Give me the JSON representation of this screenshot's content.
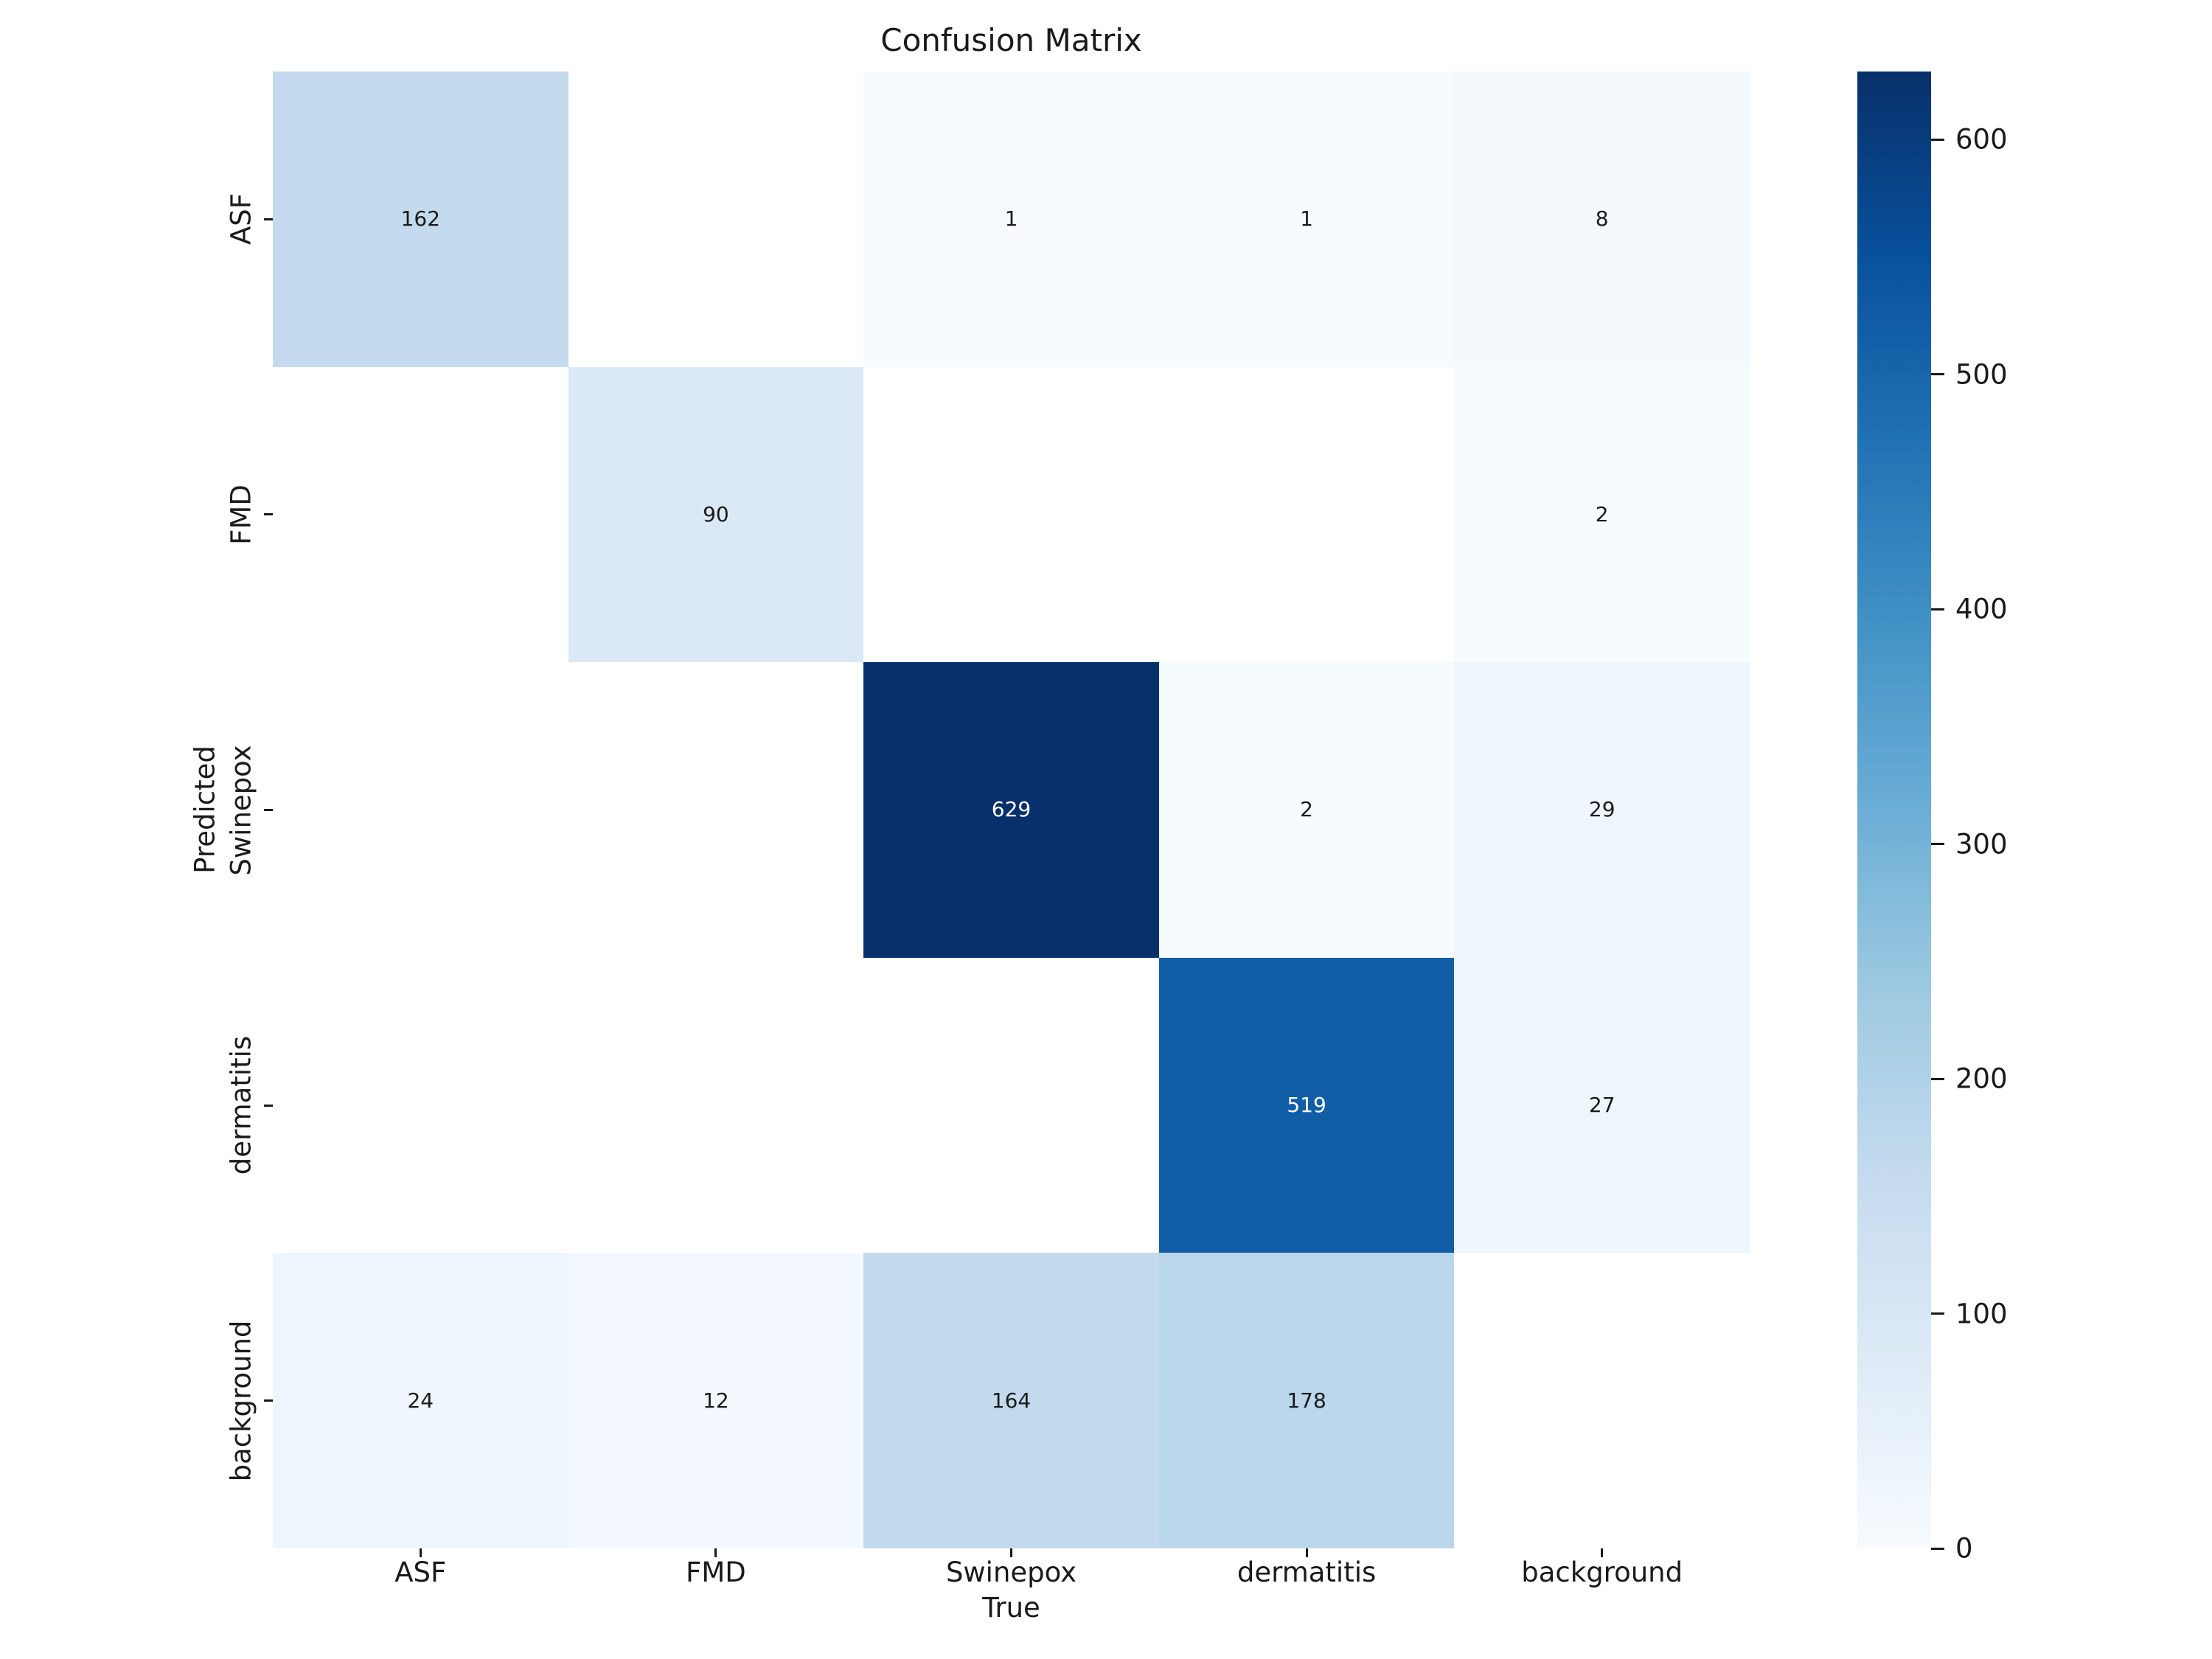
{
  "title": "Confusion Matrix",
  "chart_data": {
    "type": "heatmap",
    "title": "Confusion Matrix",
    "xlabel": "True",
    "ylabel": "Predicted",
    "x_categories": [
      "ASF",
      "FMD",
      "Swinepox",
      "dermatitis",
      "background"
    ],
    "y_categories": [
      "ASF",
      "FMD",
      "Swinepox",
      "dermatitis",
      "background"
    ],
    "values": [
      [
        162,
        null,
        1,
        1,
        8
      ],
      [
        null,
        90,
        null,
        null,
        2
      ],
      [
        null,
        null,
        629,
        2,
        29
      ],
      [
        null,
        null,
        null,
        519,
        27
      ],
      [
        24,
        12,
        164,
        178,
        null
      ]
    ],
    "blank_cells_rendered_white": true,
    "colormap": "Blues",
    "vmin": 0,
    "vmax": 629,
    "colorbar_ticks": [
      0,
      100,
      200,
      300,
      400,
      500,
      600
    ],
    "colormap_anchors": [
      "#f7fbff",
      "#deebf7",
      "#c6dbef",
      "#9ecae1",
      "#6baed6",
      "#4292c6",
      "#2171b5",
      "#08519c",
      "#08306b"
    ],
    "annotation_color_dark_cells": "#ffffff",
    "annotation_color_light_cells": "#1a1a1a",
    "blank_cell_color": "#ffffff",
    "axis_text_color": "#1a1a1a",
    "legend_position": "right-colorbar",
    "grid": false
  }
}
